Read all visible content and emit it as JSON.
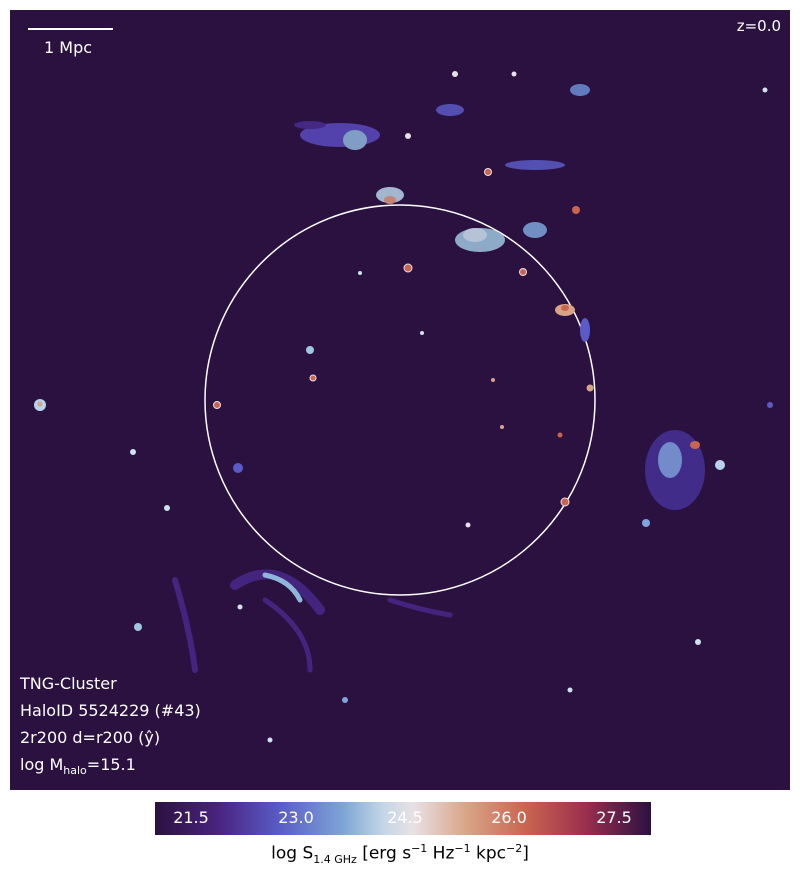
{
  "map": {
    "background": "#2b1140",
    "scale_label": "1 Mpc",
    "redshift": "z=0.0",
    "info": {
      "line1": "TNG-Cluster",
      "line2": "HaloID 5524229 (#43)",
      "line3": "2r200 d=r200 (ŷ)",
      "line4_prefix": "log M",
      "line4_sub": "halo",
      "line4_suffix": "=15.1"
    }
  },
  "colorbar": {
    "ticks": [
      "21.5",
      "23.0",
      "24.5",
      "26.0",
      "27.5"
    ],
    "label_prefix": "log S",
    "label_sub": "1.4 GHz",
    "label_mid": " [erg s",
    "sup1": "−1",
    "label_hz": " Hz",
    "sup2": "−1",
    "label_kpc": " kpc",
    "sup3": "−2",
    "label_end": "]"
  }
}
